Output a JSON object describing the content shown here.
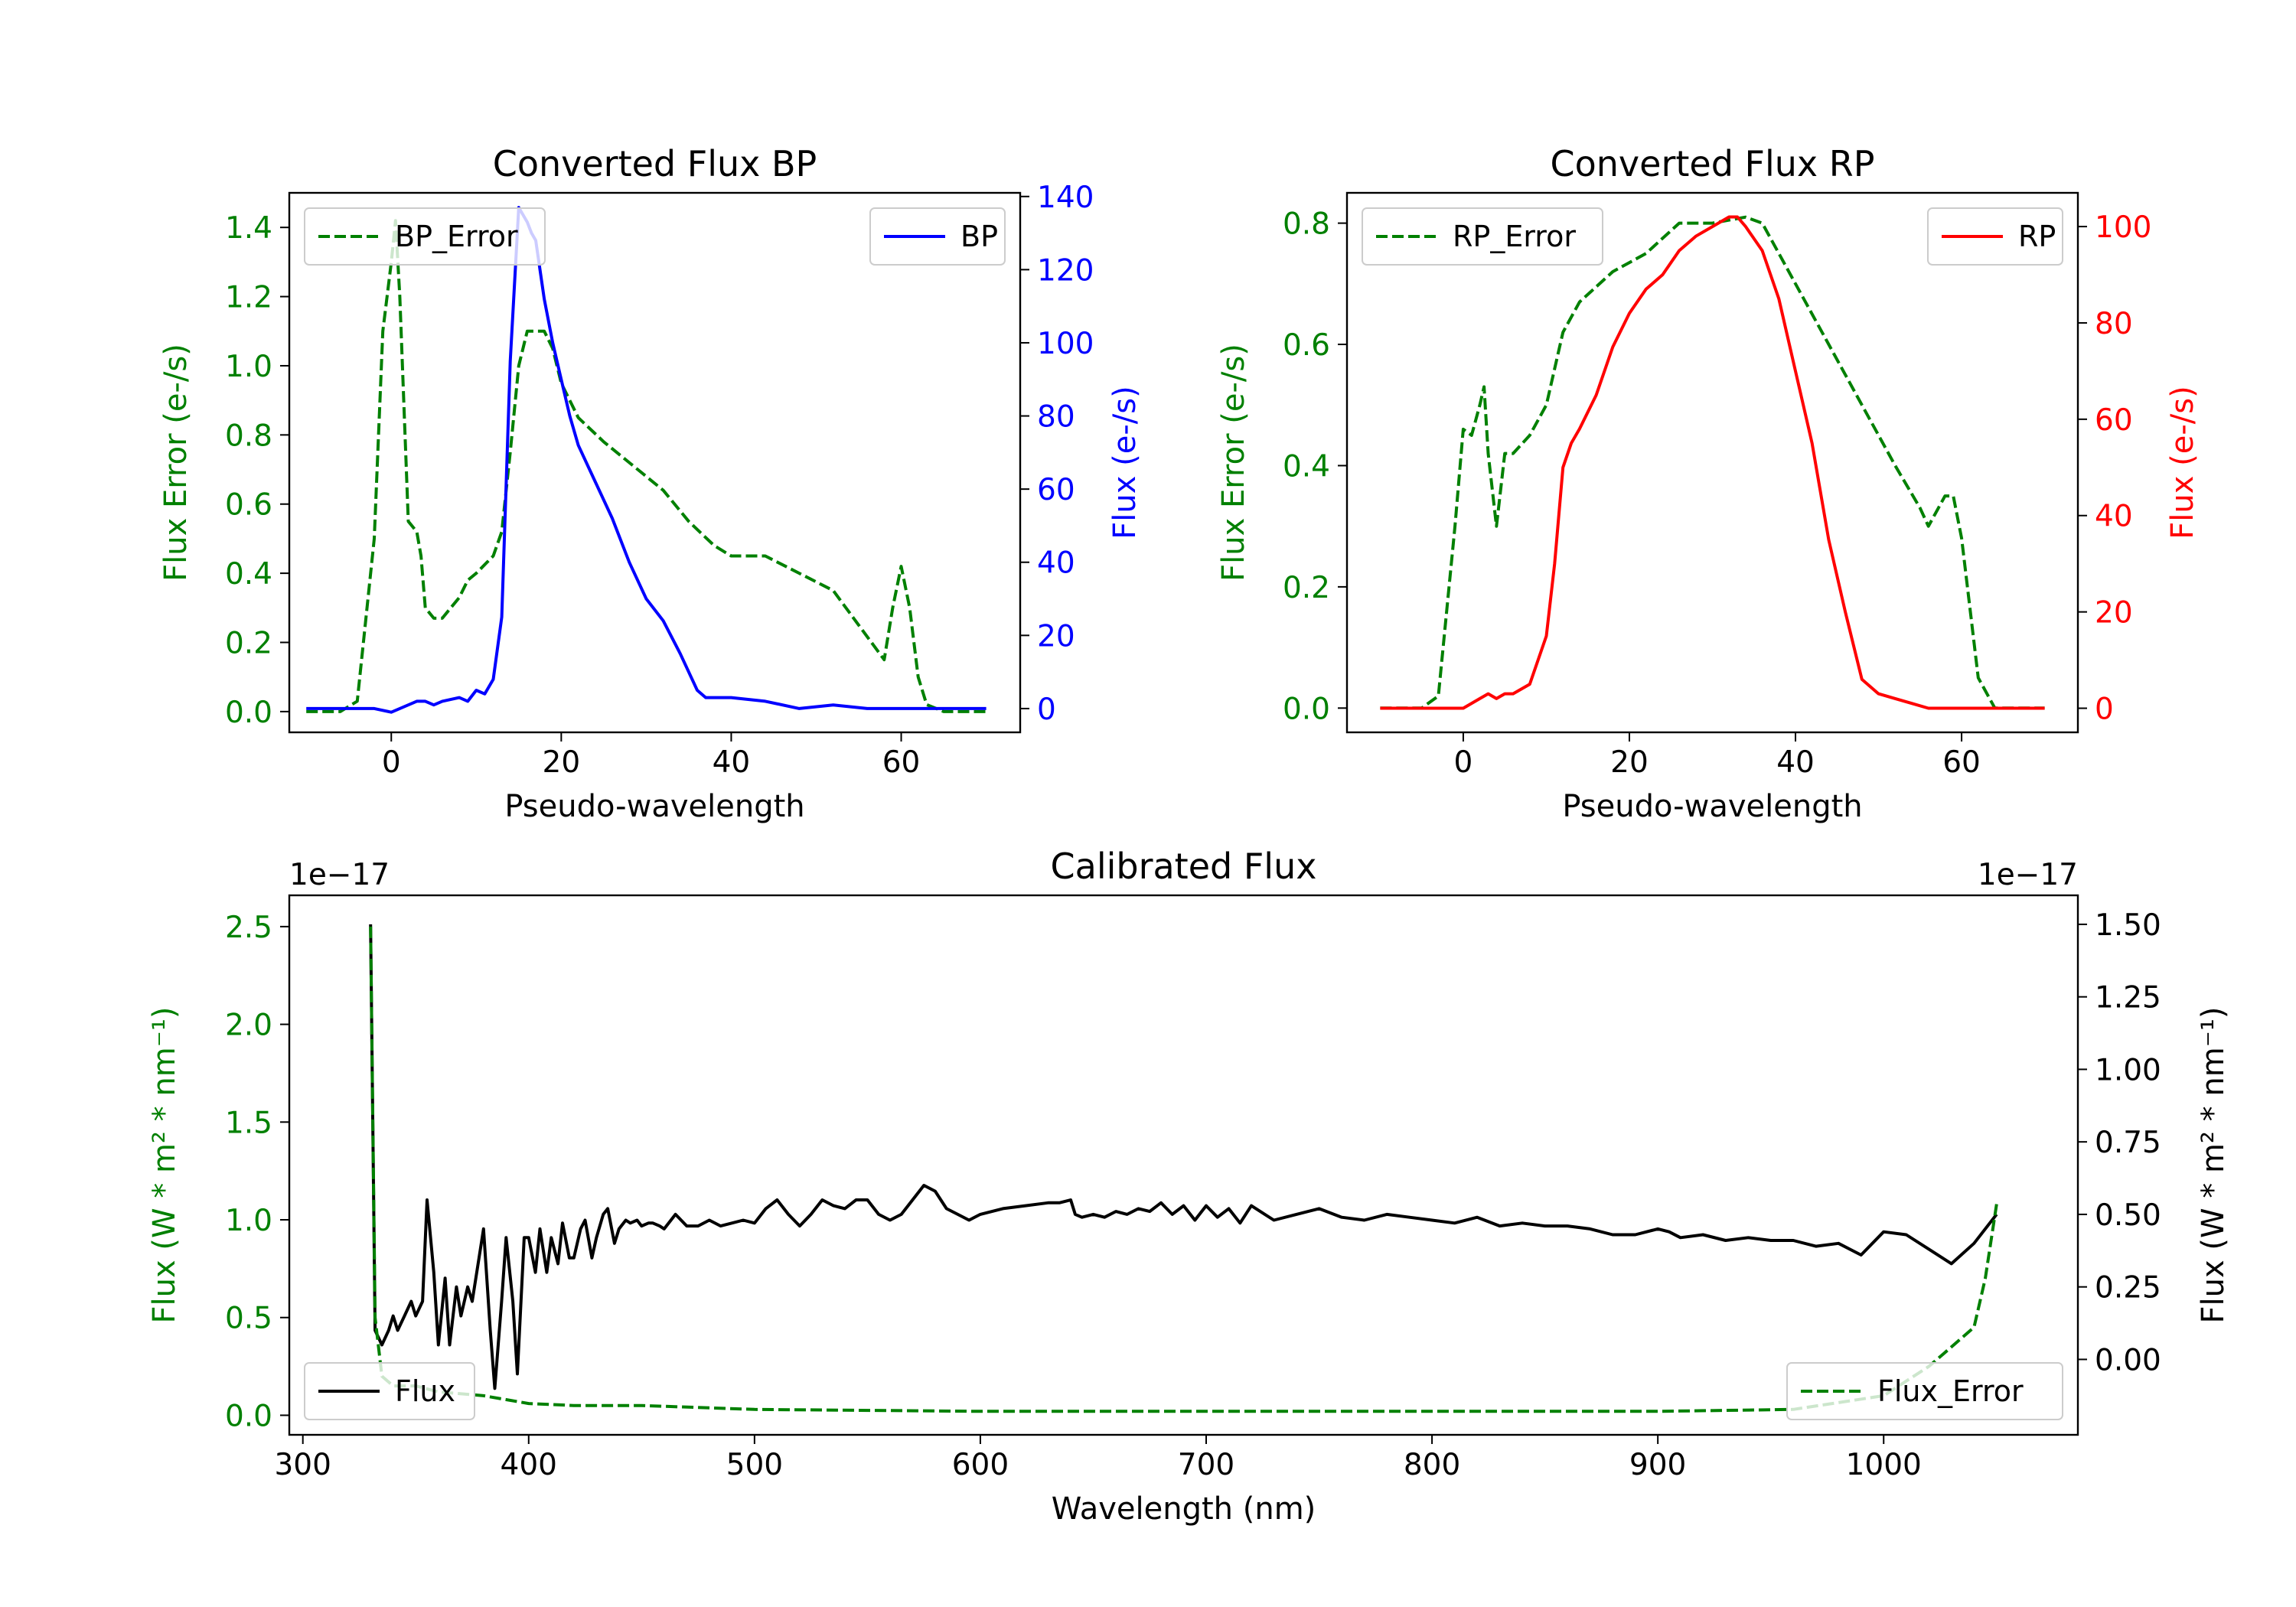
{
  "colors": {
    "green": "#008000",
    "blue": "#0000ff",
    "red": "#ff0000",
    "black": "#000000"
  },
  "chart_data": [
    {
      "id": "bp",
      "type": "line",
      "title": "Converted Flux BP",
      "xlabel": "Pseudo-wavelength",
      "ylabel_left": "Flux Error (e-/s)",
      "ylabel_right": "Flux (e-/s)",
      "xlim": [
        -12,
        74
      ],
      "ylim_left": [
        -0.06,
        1.5
      ],
      "ylim_right": [
        -6.5,
        141
      ],
      "xticks": [
        0,
        20,
        40,
        60
      ],
      "yticks_left": [
        0.0,
        0.2,
        0.4,
        0.6,
        0.8,
        1.0,
        1.2,
        1.4
      ],
      "ytick_labels_left": [
        "0.0",
        "0.2",
        "0.4",
        "0.6",
        "0.8",
        "1.0",
        "1.2",
        "1.4"
      ],
      "yticks_right": [
        0,
        20,
        40,
        60,
        80,
        100,
        120,
        140
      ],
      "legend_left": {
        "label": "BP_Error",
        "position": "upper-left"
      },
      "legend_right": {
        "label": "BP",
        "position": "upper-right"
      },
      "series": [
        {
          "name": "BP_Error",
          "axis": "left",
          "style": "dashed",
          "color": "#008000",
          "x": [
            -10,
            -6,
            -4,
            -2,
            -1,
            0,
            0.5,
            1,
            2,
            3,
            3.5,
            4,
            5,
            6,
            7,
            8,
            9,
            10,
            12,
            13,
            14,
            15,
            16,
            17,
            18,
            19,
            20,
            22,
            25,
            28,
            32,
            35,
            38,
            40,
            44,
            48,
            52,
            55,
            58,
            59,
            60,
            61,
            62,
            63,
            65,
            70
          ],
          "values": [
            0.0,
            0.0,
            0.03,
            0.5,
            1.1,
            1.3,
            1.42,
            1.2,
            0.55,
            0.52,
            0.45,
            0.3,
            0.27,
            0.27,
            0.3,
            0.33,
            0.38,
            0.4,
            0.45,
            0.52,
            0.75,
            1.0,
            1.1,
            1.1,
            1.1,
            1.05,
            0.95,
            0.85,
            0.78,
            0.72,
            0.64,
            0.55,
            0.48,
            0.45,
            0.45,
            0.4,
            0.35,
            0.25,
            0.15,
            0.3,
            0.42,
            0.3,
            0.1,
            0.02,
            0.0,
            0.0
          ]
        },
        {
          "name": "BP",
          "axis": "right",
          "style": "solid",
          "color": "#0000ff",
          "x": [
            -10,
            -5,
            -2,
            0,
            2,
            3,
            4,
            5,
            6,
            8,
            9,
            10,
            11,
            12,
            13,
            14,
            15,
            16,
            16.5,
            17,
            18,
            19,
            20,
            21,
            22,
            24,
            26,
            28,
            30,
            32,
            34,
            36,
            37,
            40,
            44,
            48,
            52,
            56,
            60,
            65,
            70
          ],
          "values": [
            0,
            0,
            0,
            -1,
            1,
            2,
            2,
            1,
            2,
            3,
            2,
            5,
            4,
            8,
            25,
            95,
            137,
            133,
            130,
            128,
            112,
            100,
            90,
            80,
            72,
            62,
            52,
            40,
            30,
            24,
            15,
            5,
            3,
            3,
            2,
            0,
            1,
            0,
            0,
            0,
            0
          ]
        }
      ]
    },
    {
      "id": "rp",
      "type": "line",
      "title": "Converted Flux RP",
      "xlabel": "Pseudo-wavelength",
      "ylabel_left": "Flux Error (e-/s)",
      "ylabel_right": "Flux (e-/s)",
      "xlim": [
        -14,
        74
      ],
      "ylim_left": [
        -0.04,
        0.85
      ],
      "ylim_right": [
        -5,
        107
      ],
      "xticks": [
        0,
        20,
        40,
        60
      ],
      "yticks_left": [
        0.0,
        0.2,
        0.4,
        0.6,
        0.8
      ],
      "ytick_labels_left": [
        "0.0",
        "0.2",
        "0.4",
        "0.6",
        "0.8"
      ],
      "yticks_right": [
        0,
        20,
        40,
        60,
        80,
        100
      ],
      "legend_left": {
        "label": "RP_Error",
        "position": "upper-left"
      },
      "legend_right": {
        "label": "RP",
        "position": "upper-right"
      },
      "series": [
        {
          "name": "RP_Error",
          "axis": "left",
          "style": "dashed",
          "color": "#008000",
          "x": [
            -10,
            -5,
            -3,
            -1,
            0,
            1,
            2,
            2.5,
            3,
            4,
            5,
            6,
            8,
            10,
            12,
            14,
            18,
            22,
            26,
            30,
            34,
            36,
            40,
            44,
            48,
            52,
            55,
            56,
            58,
            59,
            60,
            62,
            64,
            70
          ],
          "values": [
            0.0,
            0.0,
            0.02,
            0.3,
            0.46,
            0.45,
            0.5,
            0.53,
            0.42,
            0.3,
            0.42,
            0.42,
            0.45,
            0.5,
            0.62,
            0.67,
            0.72,
            0.75,
            0.8,
            0.8,
            0.81,
            0.8,
            0.7,
            0.6,
            0.5,
            0.4,
            0.33,
            0.3,
            0.35,
            0.35,
            0.28,
            0.05,
            0.0,
            0.0
          ]
        },
        {
          "name": "RP",
          "axis": "right",
          "style": "solid",
          "color": "#ff0000",
          "x": [
            -10,
            -2,
            0,
            2,
            3,
            4,
            5,
            6,
            8,
            10,
            11,
            12,
            13,
            14,
            16,
            18,
            20,
            22,
            24,
            26,
            28,
            30,
            32,
            33,
            34,
            36,
            38,
            40,
            42,
            44,
            46,
            48,
            50,
            52,
            54,
            56,
            58,
            60,
            62,
            65,
            70
          ],
          "values": [
            0,
            0,
            0,
            2,
            3,
            2,
            3,
            3,
            5,
            15,
            30,
            50,
            55,
            58,
            65,
            75,
            82,
            87,
            90,
            95,
            98,
            100,
            102,
            102,
            100,
            95,
            85,
            70,
            55,
            35,
            20,
            6,
            3,
            2,
            1,
            0,
            0,
            0,
            0,
            0,
            0
          ]
        }
      ]
    },
    {
      "id": "cal",
      "type": "line",
      "title": "Calibrated Flux",
      "xlabel": "Wavelength (nm)",
      "ylabel_left": "Flux (W * m² * nm⁻¹)",
      "ylabel_right": "Flux (W * m² * nm⁻¹)",
      "offset_left": "1e−17",
      "offset_right": "1e−17",
      "xlim": [
        294,
        1086
      ],
      "ylim_left": [
        -0.1,
        2.66
      ],
      "ylim_right": [
        -0.26,
        1.6
      ],
      "xticks": [
        300,
        400,
        500,
        600,
        700,
        800,
        900,
        1000
      ],
      "yticks_left": [
        0.0,
        0.5,
        1.0,
        1.5,
        2.0,
        2.5
      ],
      "ytick_labels_left": [
        "0.0",
        "0.5",
        "1.0",
        "1.5",
        "2.0",
        "2.5"
      ],
      "yticks_right": [
        0.0,
        0.25,
        0.5,
        0.75,
        1.0,
        1.25,
        1.5
      ],
      "ytick_labels_right": [
        "0.00",
        "0.25",
        "0.50",
        "0.75",
        "1.00",
        "1.25",
        "1.50"
      ],
      "legend_left": {
        "label": "Flux",
        "position": "lower-left"
      },
      "legend_right": {
        "label": "Flux_Error",
        "position": "lower-right"
      },
      "series": [
        {
          "name": "Flux_Error",
          "axis": "left",
          "style": "dashed",
          "color": "#008000",
          "x": [
            330,
            332,
            335,
            340,
            350,
            360,
            380,
            400,
            420,
            450,
            500,
            600,
            700,
            800,
            900,
            960,
            1000,
            1020,
            1030,
            1040,
            1045,
            1050
          ],
          "values": [
            2.5,
            0.5,
            0.2,
            0.15,
            0.15,
            0.12,
            0.1,
            0.06,
            0.05,
            0.05,
            0.03,
            0.02,
            0.02,
            0.02,
            0.02,
            0.03,
            0.1,
            0.25,
            0.35,
            0.45,
            0.7,
            1.08
          ]
        },
        {
          "name": "Flux",
          "axis": "right",
          "style": "solid",
          "color": "#000000",
          "x": [
            330,
            332,
            335,
            338,
            340,
            342,
            345,
            348,
            350,
            353,
            355,
            358,
            360,
            363,
            365,
            368,
            370,
            373,
            375,
            378,
            380,
            383,
            385,
            388,
            390,
            393,
            395,
            398,
            400,
            403,
            405,
            408,
            410,
            413,
            415,
            418,
            420,
            423,
            425,
            428,
            430,
            433,
            435,
            438,
            440,
            443,
            445,
            448,
            450,
            453,
            455,
            458,
            460,
            465,
            470,
            475,
            480,
            485,
            490,
            495,
            500,
            505,
            510,
            515,
            520,
            525,
            530,
            535,
            540,
            545,
            550,
            555,
            560,
            565,
            570,
            575,
            580,
            585,
            590,
            595,
            600,
            610,
            620,
            630,
            635,
            640,
            642,
            645,
            650,
            655,
            660,
            665,
            670,
            675,
            680,
            685,
            690,
            695,
            700,
            705,
            710,
            715,
            720,
            730,
            740,
            750,
            760,
            770,
            780,
            790,
            800,
            810,
            820,
            830,
            840,
            850,
            860,
            870,
            880,
            890,
            900,
            905,
            910,
            920,
            930,
            940,
            950,
            960,
            970,
            980,
            990,
            1000,
            1010,
            1020,
            1030,
            1040,
            1050
          ],
          "values": [
            1.5,
            0.1,
            0.05,
            0.1,
            0.15,
            0.1,
            0.15,
            0.2,
            0.15,
            0.2,
            0.55,
            0.3,
            0.05,
            0.28,
            0.05,
            0.25,
            0.15,
            0.25,
            0.2,
            0.35,
            0.45,
            0.1,
            -0.1,
            0.2,
            0.42,
            0.2,
            -0.05,
            0.42,
            0.42,
            0.3,
            0.45,
            0.3,
            0.42,
            0.33,
            0.47,
            0.35,
            0.35,
            0.45,
            0.48,
            0.35,
            0.42,
            0.5,
            0.52,
            0.4,
            0.45,
            0.48,
            0.47,
            0.48,
            0.46,
            0.47,
            0.47,
            0.46,
            0.45,
            0.5,
            0.46,
            0.46,
            0.48,
            0.46,
            0.47,
            0.48,
            0.47,
            0.52,
            0.55,
            0.5,
            0.46,
            0.5,
            0.55,
            0.53,
            0.52,
            0.55,
            0.55,
            0.5,
            0.48,
            0.5,
            0.55,
            0.6,
            0.58,
            0.52,
            0.5,
            0.48,
            0.5,
            0.52,
            0.53,
            0.54,
            0.54,
            0.55,
            0.5,
            0.49,
            0.5,
            0.49,
            0.51,
            0.5,
            0.52,
            0.51,
            0.54,
            0.5,
            0.53,
            0.48,
            0.53,
            0.49,
            0.52,
            0.47,
            0.53,
            0.48,
            0.5,
            0.52,
            0.49,
            0.48,
            0.5,
            0.49,
            0.48,
            0.47,
            0.49,
            0.46,
            0.47,
            0.46,
            0.46,
            0.45,
            0.43,
            0.43,
            0.45,
            0.44,
            0.42,
            0.43,
            0.41,
            0.42,
            0.41,
            0.41,
            0.39,
            0.4,
            0.36,
            0.44,
            0.43,
            0.38,
            0.33,
            0.4,
            0.5
          ]
        }
      ]
    }
  ]
}
